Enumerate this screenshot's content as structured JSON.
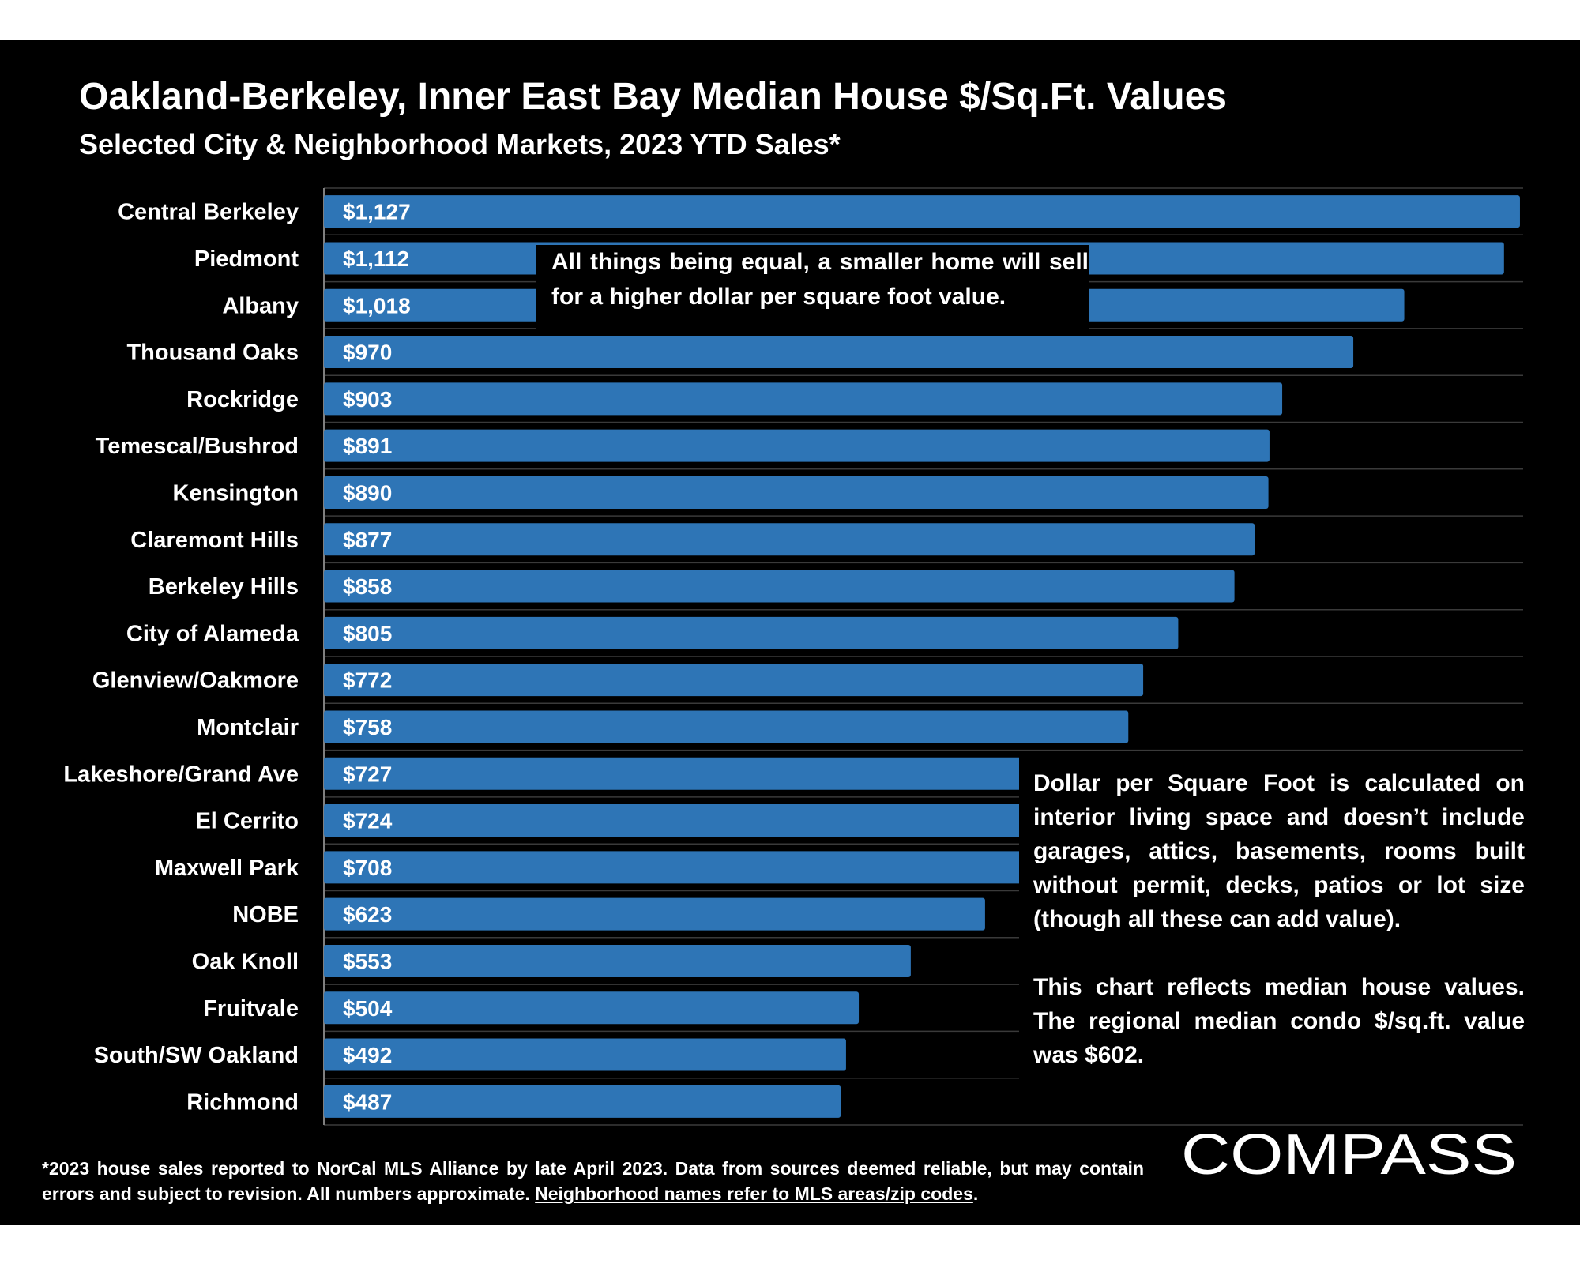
{
  "title": "Oakland-Berkeley, Inner East Bay Median House $/Sq.Ft. Values",
  "subtitle": "Selected City & Neighborhood Markets, 2023 YTD Sales*",
  "colors": {
    "background": "#000000",
    "bar": "#2e75b6",
    "text": "#ffffff"
  },
  "chart_data": {
    "type": "bar",
    "orientation": "horizontal",
    "categories": [
      "Central Berkeley",
      "Piedmont",
      "Albany",
      "Thousand Oaks",
      "Rockridge",
      "Temescal/Bushrod",
      "Kensington",
      "Claremont Hills",
      "Berkeley Hills",
      "City of Alameda",
      "Glenview/Oakmore",
      "Montclair",
      "Lakeshore/Grand Ave",
      "El Cerrito",
      "Maxwell Park",
      "NOBE",
      "Oak Knoll",
      "Fruitvale",
      "South/SW Oakland",
      "Richmond"
    ],
    "values": [
      1127,
      1112,
      1018,
      970,
      903,
      891,
      890,
      877,
      858,
      805,
      772,
      758,
      727,
      724,
      708,
      623,
      553,
      504,
      492,
      487
    ],
    "data_labels": [
      "$1,127",
      "$1,112",
      "$1,018",
      "$970",
      "$903",
      "$891",
      "$890",
      "$877",
      "$858",
      "$805",
      "$772",
      "$758",
      "$727",
      "$724",
      "$708",
      "$623",
      "$553",
      "$504",
      "$492",
      "$487"
    ],
    "xlim": [
      0,
      1130
    ],
    "grid": true,
    "legend": false
  },
  "notes": {
    "top": "All things being equal, a smaller home will sell for a higher dollar per square foot value.",
    "right_1": "Dollar per Square Foot is calculated on interior living space and doesn’t include garages, attics, basements, rooms built without permit, decks, patios or lot size (though all these can add value).",
    "right_2": "This chart reflects median house values. The regional median condo $/sq.ft. value was $602."
  },
  "footnote": {
    "text": "*2023 house sales reported to NorCal MLS Alliance by late April 2023. Data from sources deemed reliable, but may contain errors and subject to revision. All numbers approximate. ",
    "link": "Neighborhood names refer to MLS areas/zip codes",
    "end": "."
  },
  "logo": {
    "text": "COMPASS"
  }
}
